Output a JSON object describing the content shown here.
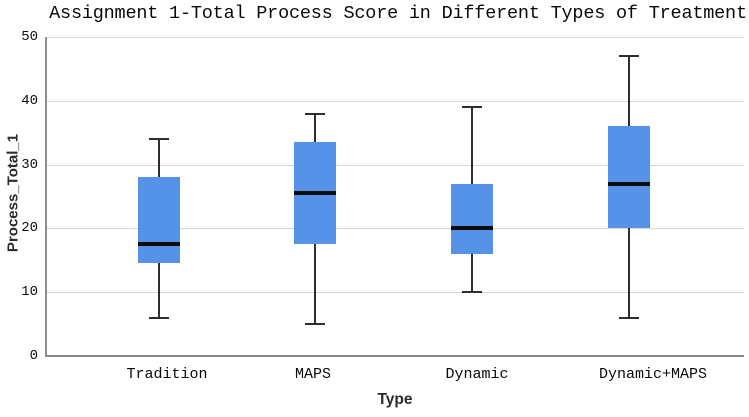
{
  "chart_data": {
    "type": "boxplot",
    "title": "Assignment 1-Total Process Score in Different Types of Treatment",
    "xlabel": "Type",
    "ylabel": "Process_Total_1",
    "ylim": [
      0,
      50
    ],
    "yticks": [
      0,
      10,
      20,
      30,
      40,
      50
    ],
    "grid": true,
    "legend": "none",
    "categories": [
      "Tradition",
      "MAPS",
      "Dynamic",
      "Dynamic+MAPS"
    ],
    "series": [
      {
        "category": "Tradition",
        "whisker_low": 6,
        "q1": 14.5,
        "median": 17.5,
        "q3": 28,
        "whisker_high": 34
      },
      {
        "category": "MAPS",
        "whisker_low": 5,
        "q1": 17.5,
        "median": 25.5,
        "q3": 33.5,
        "whisker_high": 38
      },
      {
        "category": "Dynamic",
        "whisker_low": 10,
        "q1": 16,
        "median": 20,
        "q3": 27,
        "whisker_high": 39
      },
      {
        "category": "Dynamic+MAPS",
        "whisker_low": 6,
        "q1": 20,
        "median": 27,
        "q3": 36,
        "whisker_high": 47
      }
    ],
    "colors": {
      "box_fill": "#5592e8",
      "median": "#0d0d0d",
      "whisker": "#2e2e2e",
      "gridline": "#d7d7d7",
      "axis": "#8a8a8a",
      "text": "#111111"
    }
  }
}
